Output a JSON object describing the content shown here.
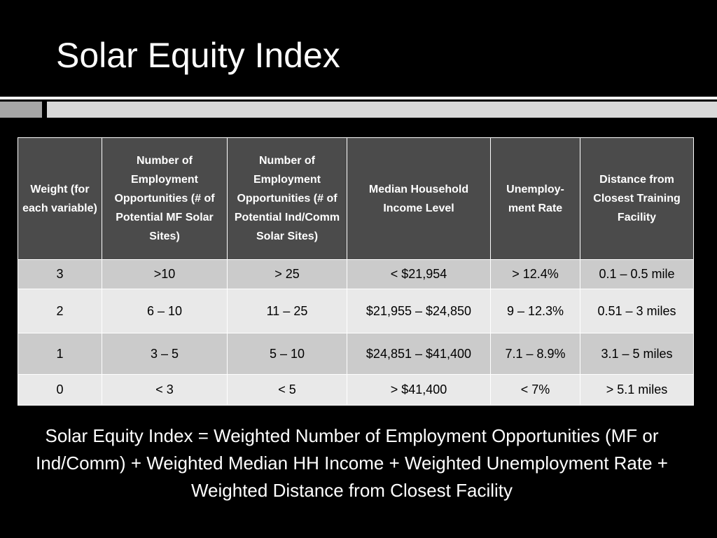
{
  "header": {
    "title": "Solar Equity Index"
  },
  "table": {
    "columns": [
      "Weight (for each variable)",
      "Number of Employment Opportunities (# of Potential MF Solar Sites)",
      "Number of Employment Opportunities (# of Potential Ind/Comm Solar Sites)",
      "Median Household Income Level",
      "Unemploy-ment Rate",
      "Distance from Closest Training Facility"
    ],
    "rows": [
      [
        "3",
        ">10",
        "> 25",
        "< $21,954",
        "> 12.4%",
        "0.1 – 0.5 mile"
      ],
      [
        "2",
        "6 – 10",
        "11 – 25",
        "$21,955 – $24,850",
        "9 – 12.3%",
        "0.51 – 3 miles"
      ],
      [
        "1",
        "3 – 5",
        "5 – 10",
        "$24,851 – $41,400",
        "7.1 – 8.9%",
        "3.1 – 5 miles"
      ],
      [
        "0",
        "< 3",
        "< 5",
        "> $41,400",
        "< 7%",
        "> 5.1 miles"
      ]
    ]
  },
  "footer": {
    "formula": "Solar Equity Index = Weighted Number of Employment Opportunities (MF or Ind/Comm) + Weighted Median HH Income + Weighted Unemployment Rate + Weighted Distance from Closest Facility"
  }
}
